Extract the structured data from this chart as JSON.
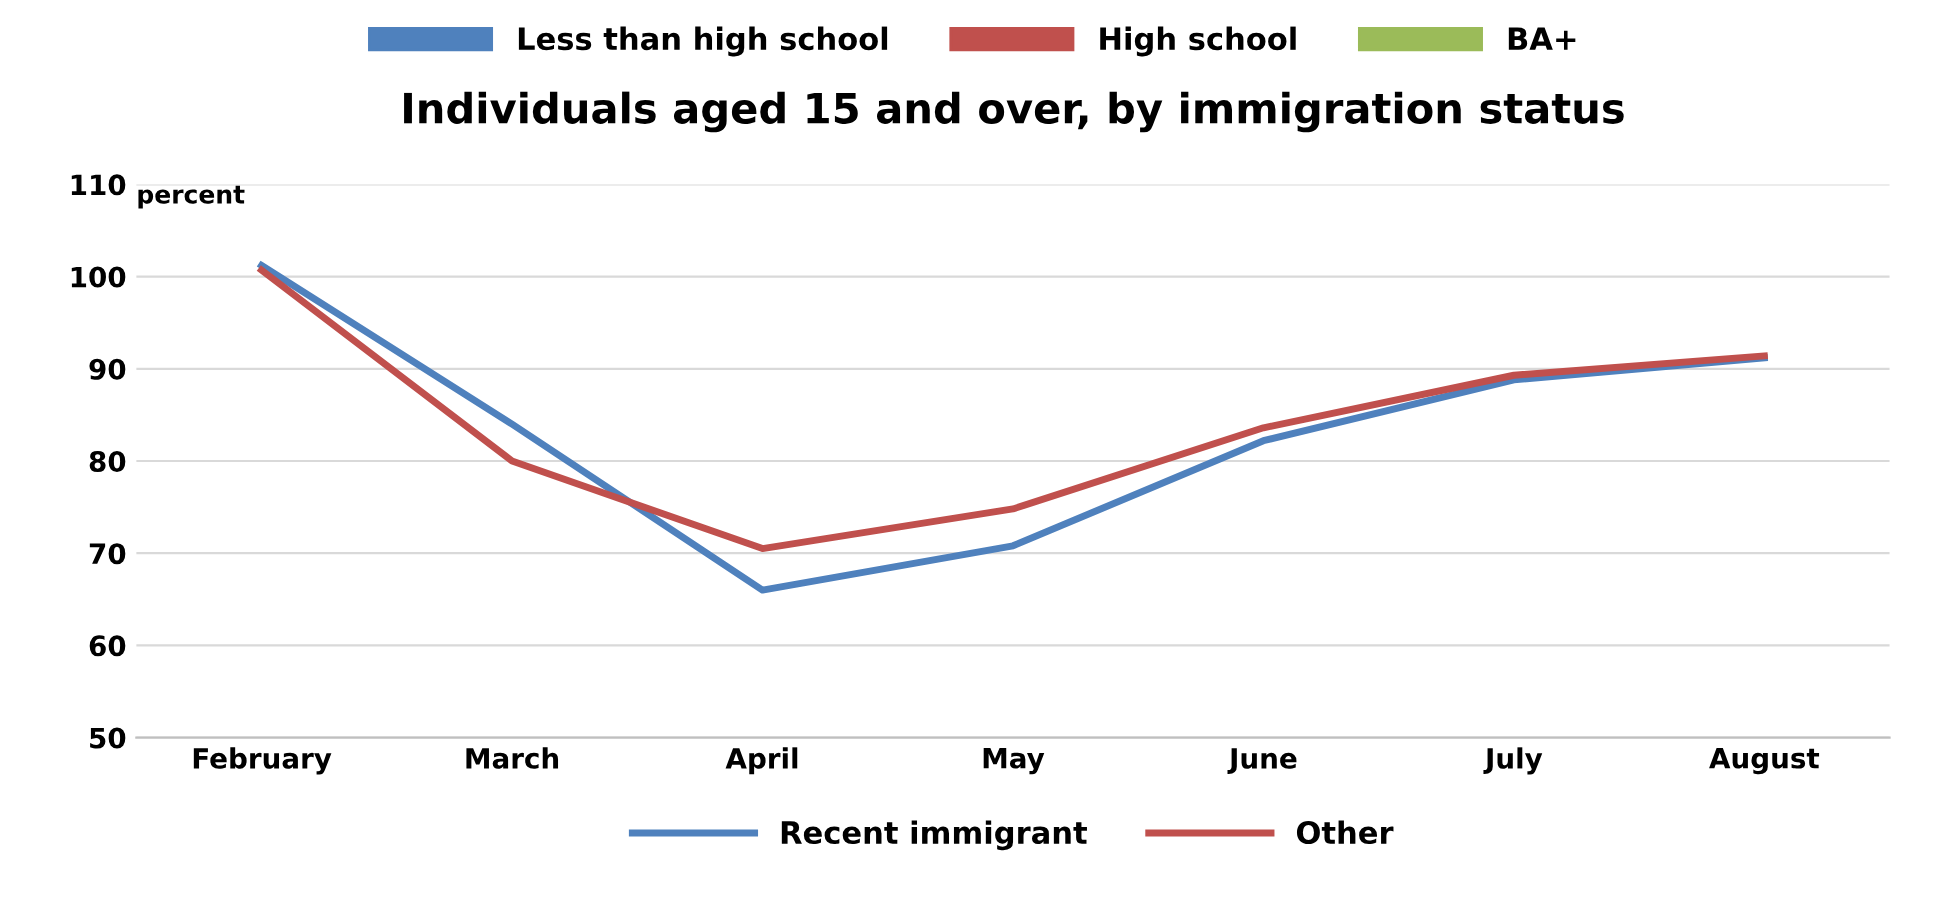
{
  "chart_data": [
    {
      "type": "other",
      "legend": "top",
      "series": [
        {
          "name": "Less than high school",
          "color": "#4f81bd"
        },
        {
          "name": "High school",
          "color": "#c0504d"
        },
        {
          "name": "BA+",
          "color": "#9bbb59"
        }
      ]
    },
    {
      "type": "line",
      "title": "Individuals aged 15 and over, by immigration status",
      "ylabel": "percent",
      "categories": [
        "February",
        "March",
        "April",
        "May",
        "June",
        "July",
        "August"
      ],
      "ylim": [
        50,
        110
      ],
      "yticks": [
        50,
        60,
        70,
        80,
        90,
        100,
        110
      ],
      "grid": "y",
      "legend": "bottom",
      "marker": "none",
      "line_style": "solid",
      "series": [
        {
          "name": "Recent immigrant",
          "color": "#4f81bd",
          "values": [
            101.2,
            84,
            66,
            70.8,
            82.2,
            88.8,
            91.2
          ]
        },
        {
          "name": "Other",
          "color": "#c0504d",
          "values": [
            100.7,
            80,
            70.5,
            74.8,
            83.6,
            89.3,
            91.4
          ]
        }
      ]
    }
  ]
}
